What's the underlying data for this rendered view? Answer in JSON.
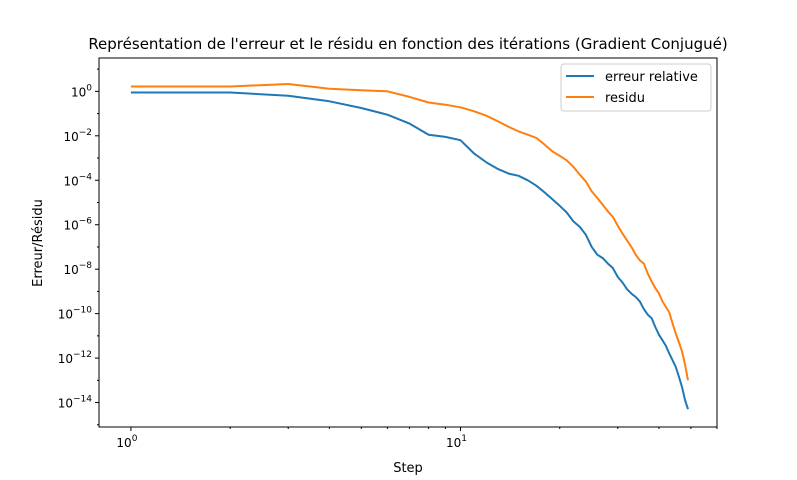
{
  "chart_data": {
    "type": "line",
    "title": "Représentation de l'erreur et le résidu en fonction des itérations (Gradient Conjugué)",
    "xlabel": "Step",
    "ylabel": "Erreur/Résidu",
    "xscale": "log",
    "yscale": "log",
    "xlim": [
      0.8,
      60
    ],
    "ylim_exponent": [
      -15.1,
      1.5
    ],
    "x_ticks": [
      {
        "value": 1,
        "base": "10",
        "exp": "0"
      },
      {
        "value": 10,
        "base": "10",
        "exp": "1"
      }
    ],
    "y_ticks": [
      {
        "exp": 0,
        "base": "10",
        "label": "0"
      },
      {
        "exp": -2,
        "base": "10",
        "label": "−2"
      },
      {
        "exp": -4,
        "base": "10",
        "label": "−4"
      },
      {
        "exp": -6,
        "base": "10",
        "label": "−6"
      },
      {
        "exp": -8,
        "base": "10",
        "label": "−8"
      },
      {
        "exp": -10,
        "base": "10",
        "label": "−10"
      },
      {
        "exp": -12,
        "base": "10",
        "label": "−12"
      },
      {
        "exp": -14,
        "base": "10",
        "label": "−14"
      }
    ],
    "grid": false,
    "legend_position": "top-right",
    "series": [
      {
        "name": "erreur relative",
        "color": "#1f77b4",
        "x": [
          0,
          1,
          2,
          3,
          4,
          5,
          6,
          7,
          8,
          9,
          10,
          11,
          12,
          13,
          14,
          15,
          16,
          17,
          18,
          19,
          20,
          21,
          22,
          23,
          24,
          25,
          26,
          27,
          28,
          29,
          30,
          31,
          32,
          33,
          34,
          35,
          36,
          37,
          38,
          39,
          40,
          41,
          42,
          43,
          44,
          45,
          46,
          47,
          48
        ],
        "log10_y": [
          -0.05,
          -0.05,
          -0.2,
          -0.45,
          -0.75,
          -1.05,
          -1.45,
          -1.95,
          -2.05,
          -2.2,
          -2.8,
          -3.2,
          -3.5,
          -3.7,
          -3.8,
          -4.0,
          -4.25,
          -4.55,
          -4.85,
          -5.15,
          -5.45,
          -5.85,
          -6.1,
          -6.45,
          -7.0,
          -7.35,
          -7.5,
          -7.75,
          -7.95,
          -8.35,
          -8.6,
          -8.9,
          -9.1,
          -9.25,
          -9.45,
          -9.8,
          -10.05,
          -10.2,
          -10.6,
          -10.95,
          -11.2,
          -11.45,
          -11.8,
          -12.1,
          -12.4,
          -12.85,
          -13.3,
          -13.9,
          -14.3
        ]
      },
      {
        "name": "residu",
        "color": "#ff7f0e",
        "x": [
          0,
          1,
          2,
          3,
          4,
          5,
          6,
          7,
          8,
          9,
          10,
          11,
          12,
          13,
          14,
          15,
          16,
          17,
          18,
          19,
          20,
          21,
          22,
          23,
          24,
          25,
          26,
          27,
          28,
          29,
          30,
          31,
          32,
          33,
          34,
          35,
          36,
          37,
          38,
          39,
          40,
          41,
          42,
          43,
          44,
          45,
          46,
          47,
          48
        ],
        "log10_y": [
          0.22,
          0.22,
          0.33,
          0.12,
          0.05,
          0.0,
          -0.25,
          -0.5,
          -0.6,
          -0.72,
          -0.9,
          -1.1,
          -1.35,
          -1.6,
          -1.8,
          -1.95,
          -2.1,
          -2.4,
          -2.7,
          -2.9,
          -3.1,
          -3.4,
          -3.75,
          -4.05,
          -4.5,
          -4.8,
          -5.1,
          -5.4,
          -5.65,
          -6.05,
          -6.4,
          -6.7,
          -7.0,
          -7.35,
          -7.6,
          -7.75,
          -8.2,
          -8.55,
          -8.85,
          -9.1,
          -9.45,
          -9.7,
          -9.95,
          -10.45,
          -10.9,
          -11.3,
          -11.7,
          -12.3,
          -13.0
        ]
      }
    ]
  }
}
